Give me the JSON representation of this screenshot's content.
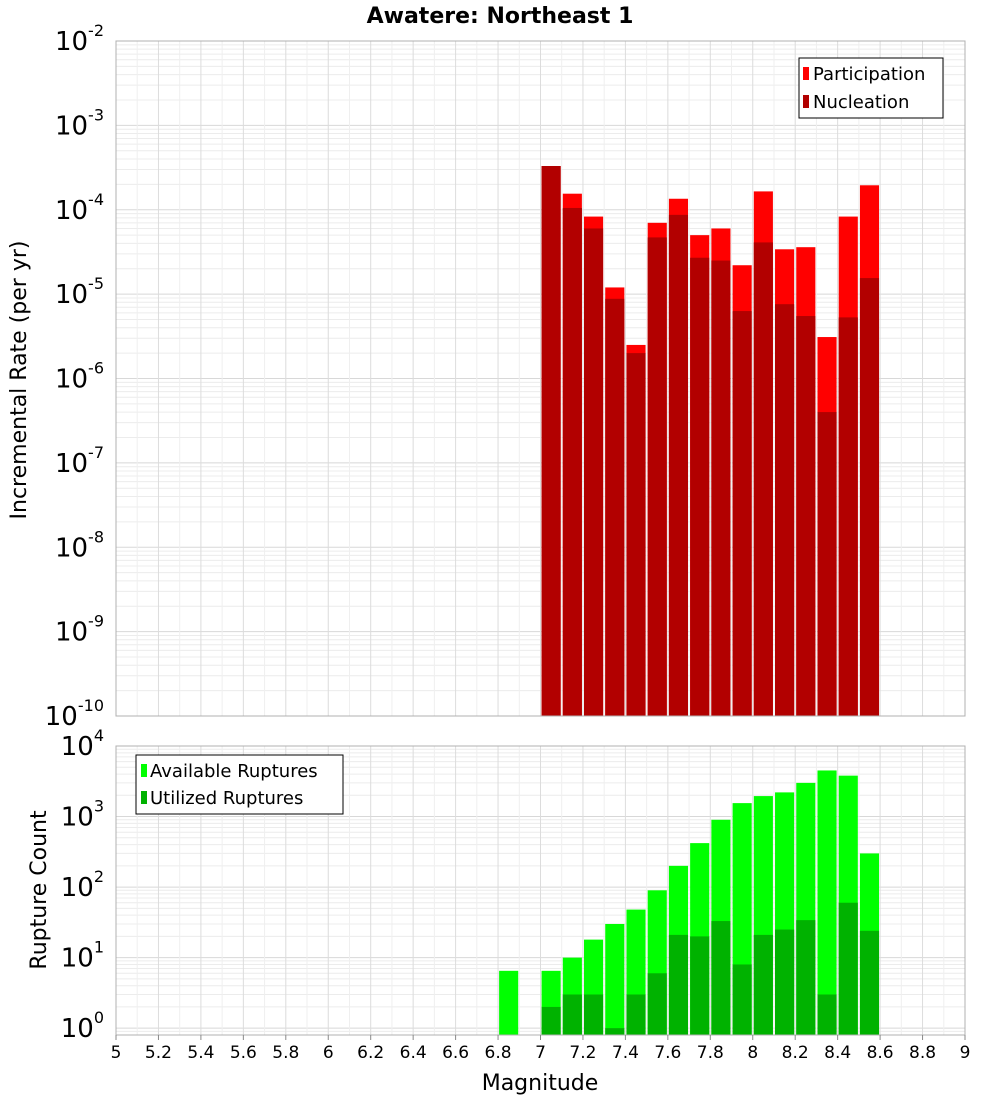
{
  "chart_data": [
    {
      "type": "bar",
      "title": "Awatere: Northeast 1",
      "xlabel": "Magnitude",
      "ylabel": "Incremental Rate (per yr)",
      "yscale": "log",
      "ylim": [
        1e-10,
        0.01
      ],
      "xlim": [
        5,
        9
      ],
      "grid": true,
      "legend_position": "top-right",
      "bin_width": 0.1,
      "x": [
        7.0,
        7.1,
        7.2,
        7.3,
        7.4,
        7.5,
        7.6,
        7.7,
        7.8,
        7.9,
        8.0,
        8.1,
        8.2,
        8.3,
        8.4,
        8.5
      ],
      "series": [
        {
          "name": "Participation",
          "color": "#ff0000",
          "values": [
            0.00033,
            0.000155,
            8.3e-05,
            1.2e-05,
            2.5e-06,
            7e-05,
            0.000135,
            5e-05,
            6e-05,
            2.2e-05,
            0.000165,
            3.4e-05,
            3.6e-05,
            3.1e-06,
            8.3e-05,
            0.000195
          ]
        },
        {
          "name": "Nucleation",
          "color": "#b20000",
          "values": [
            0.00033,
            0.000105,
            6e-05,
            8.8e-06,
            2e-06,
            4.7e-05,
            8.7e-05,
            2.7e-05,
            2.5e-05,
            6.3e-06,
            4.1e-05,
            7.6e-06,
            5.5e-06,
            4e-07,
            5.3e-06,
            1.55e-05
          ]
        }
      ]
    },
    {
      "type": "bar",
      "xlabel": "Magnitude",
      "ylabel": "Rupture Count",
      "yscale": "log",
      "ylim": [
        0.8,
        10000
      ],
      "xlim": [
        5,
        9
      ],
      "grid": true,
      "legend_position": "top-left",
      "bin_width": 0.1,
      "x": [
        6.8,
        7.0,
        7.1,
        7.2,
        7.3,
        7.4,
        7.5,
        7.6,
        7.7,
        7.8,
        7.9,
        8.0,
        8.1,
        8.2,
        8.3,
        8.4,
        8.5
      ],
      "series": [
        {
          "name": "Available Ruptures",
          "color": "#00ff00",
          "values": [
            6.5,
            6.5,
            10,
            18,
            30,
            48,
            90,
            200,
            420,
            900,
            1550,
            1950,
            2200,
            3000,
            4500,
            3800,
            300
          ]
        },
        {
          "name": "Utilized Ruptures",
          "color": "#00b200",
          "values": [
            0,
            2,
            3,
            3,
            1,
            3,
            6,
            21,
            20,
            33,
            8,
            21,
            25,
            34,
            3,
            60,
            24
          ]
        }
      ]
    }
  ],
  "x_ticks": [
    "5",
    "5.2",
    "5.4",
    "5.6",
    "5.8",
    "6",
    "6.2",
    "6.4",
    "6.6",
    "6.8",
    "7",
    "7.2",
    "7.4",
    "7.6",
    "7.8",
    "8",
    "8.2",
    "8.4",
    "8.6",
    "8.8",
    "9"
  ],
  "top_y_decades": [
    {
      "base": "10",
      "exp": "-2"
    },
    {
      "base": "10",
      "exp": "-3"
    },
    {
      "base": "10",
      "exp": "-4"
    },
    {
      "base": "10",
      "exp": "-5"
    },
    {
      "base": "10",
      "exp": "-6"
    },
    {
      "base": "10",
      "exp": "-7"
    },
    {
      "base": "10",
      "exp": "-8"
    },
    {
      "base": "10",
      "exp": "-9"
    },
    {
      "base": "10",
      "exp": "-10"
    }
  ],
  "bottom_y_decades": [
    {
      "base": "10",
      "exp": "4"
    },
    {
      "base": "10",
      "exp": "3"
    },
    {
      "base": "10",
      "exp": "2"
    },
    {
      "base": "10",
      "exp": "1"
    },
    {
      "base": "10",
      "exp": "0"
    }
  ]
}
